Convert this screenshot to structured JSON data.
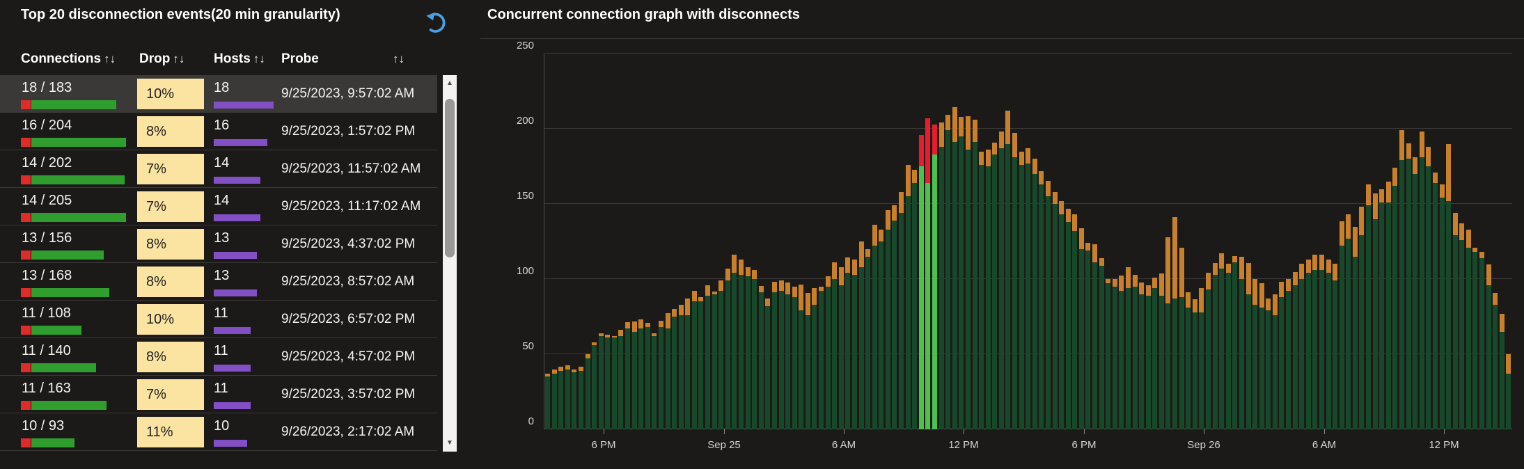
{
  "left_panel": {
    "title": "Top 20 disconnection events(20 min granularity)",
    "sort_glyph": "↑↓",
    "columns": [
      {
        "label": "Connections"
      },
      {
        "label": "Drop"
      },
      {
        "label": "Hosts"
      },
      {
        "label": "Probe"
      }
    ],
    "rows": [
      {
        "connections": "18 / 183",
        "total": 183,
        "drop": "10%",
        "hosts": "18",
        "hosts_n": 18,
        "probe": "9/25/2023, 9:57:02 AM",
        "selected": true
      },
      {
        "connections": "16 / 204",
        "total": 204,
        "drop": "8%",
        "hosts": "16",
        "hosts_n": 16,
        "probe": "9/25/2023, 1:57:02 PM",
        "selected": false
      },
      {
        "connections": "14 / 202",
        "total": 202,
        "drop": "7%",
        "hosts": "14",
        "hosts_n": 14,
        "probe": "9/25/2023, 11:57:02 AM",
        "selected": false
      },
      {
        "connections": "14 / 205",
        "total": 205,
        "drop": "7%",
        "hosts": "14",
        "hosts_n": 14,
        "probe": "9/25/2023, 11:17:02 AM",
        "selected": false
      },
      {
        "connections": "13 / 156",
        "total": 156,
        "drop": "8%",
        "hosts": "13",
        "hosts_n": 13,
        "probe": "9/25/2023, 4:37:02 PM",
        "selected": false
      },
      {
        "connections": "13 / 168",
        "total": 168,
        "drop": "8%",
        "hosts": "13",
        "hosts_n": 13,
        "probe": "9/25/2023, 8:57:02 AM",
        "selected": false
      },
      {
        "connections": "11 / 108",
        "total": 108,
        "drop": "10%",
        "hosts": "11",
        "hosts_n": 11,
        "probe": "9/25/2023, 6:57:02 PM",
        "selected": false
      },
      {
        "connections": "11 / 140",
        "total": 140,
        "drop": "8%",
        "hosts": "11",
        "hosts_n": 11,
        "probe": "9/25/2023, 4:57:02 PM",
        "selected": false
      },
      {
        "connections": "11 / 163",
        "total": 163,
        "drop": "7%",
        "hosts": "11",
        "hosts_n": 11,
        "probe": "9/25/2023, 3:57:02 PM",
        "selected": false
      },
      {
        "connections": "10 / 93",
        "total": 93,
        "drop": "11%",
        "hosts": "10",
        "hosts_n": 10,
        "probe": "9/26/2023, 2:17:02 AM",
        "selected": false
      }
    ]
  },
  "chart_data": {
    "type": "bar",
    "title": "Concurrent connection graph with disconnects",
    "granularity_minutes": 20,
    "ylim": [
      0,
      250
    ],
    "yticks": [
      0,
      50,
      100,
      150,
      200,
      250
    ],
    "grid": true,
    "xticks": [
      {
        "label": "6 PM",
        "barIndex": 8.4
      },
      {
        "label": "Sep 25",
        "barIndex": 26.4
      },
      {
        "label": "6 AM",
        "barIndex": 44.4
      },
      {
        "label": "12 PM",
        "barIndex": 62.3
      },
      {
        "label": "6 PM",
        "barIndex": 80.3
      },
      {
        "label": "Sep 26",
        "barIndex": 98.3
      },
      {
        "label": "6 AM",
        "barIndex": 116.3
      },
      {
        "label": "12 PM",
        "barIndex": 134.3
      }
    ],
    "series_note": "each bar = [stable_connections, total_connections]; top segment (total-stable) drawn orange, or red on highlighted disconnect bars",
    "highlighted_indices": [
      56,
      57,
      58
    ],
    "bars": [
      [
        35,
        37
      ],
      [
        37,
        40
      ],
      [
        39,
        42
      ],
      [
        40,
        43
      ],
      [
        38,
        40
      ],
      [
        39,
        42
      ],
      [
        47,
        50
      ],
      [
        56,
        58
      ],
      [
        62,
        64
      ],
      [
        61,
        63
      ],
      [
        61,
        62
      ],
      [
        62,
        66
      ],
      [
        67,
        71
      ],
      [
        65,
        72
      ],
      [
        67,
        73
      ],
      [
        68,
        71
      ],
      [
        62,
        64
      ],
      [
        68,
        72
      ],
      [
        67,
        77
      ],
      [
        75,
        80
      ],
      [
        76,
        83
      ],
      [
        76,
        87
      ],
      [
        85,
        92
      ],
      [
        85,
        88
      ],
      [
        89,
        96
      ],
      [
        90,
        92
      ],
      [
        92,
        99
      ],
      [
        99,
        107
      ],
      [
        104,
        116
      ],
      [
        103,
        113
      ],
      [
        102,
        108
      ],
      [
        100,
        106
      ],
      [
        91,
        95
      ],
      [
        82,
        87
      ],
      [
        91,
        98
      ],
      [
        92,
        99
      ],
      [
        90,
        98
      ],
      [
        88,
        95
      ],
      [
        79,
        96
      ],
      [
        76,
        91
      ],
      [
        83,
        94
      ],
      [
        92,
        95
      ],
      [
        95,
        102
      ],
      [
        100,
        111
      ],
      [
        96,
        108
      ],
      [
        104,
        114
      ],
      [
        103,
        113
      ],
      [
        108,
        125
      ],
      [
        115,
        120
      ],
      [
        122,
        136
      ],
      [
        125,
        133
      ],
      [
        133,
        146
      ],
      [
        139,
        149
      ],
      [
        144,
        158
      ],
      [
        155,
        176
      ],
      [
        164,
        173
      ],
      [
        175,
        196
      ],
      [
        164,
        207
      ],
      [
        183,
        203
      ],
      [
        188,
        204
      ],
      [
        199,
        209
      ],
      [
        191,
        214
      ],
      [
        195,
        208
      ],
      [
        186,
        208
      ],
      [
        191,
        206
      ],
      [
        176,
        185
      ],
      [
        175,
        186
      ],
      [
        183,
        191
      ],
      [
        187,
        198
      ],
      [
        190,
        212
      ],
      [
        181,
        197
      ],
      [
        176,
        185
      ],
      [
        177,
        187
      ],
      [
        170,
        180
      ],
      [
        163,
        172
      ],
      [
        155,
        165
      ],
      [
        150,
        158
      ],
      [
        143,
        152
      ],
      [
        138,
        147
      ],
      [
        132,
        143
      ],
      [
        120,
        134
      ],
      [
        119,
        124
      ],
      [
        111,
        123
      ],
      [
        109,
        114
      ],
      [
        97,
        100
      ],
      [
        95,
        100
      ],
      [
        92,
        102
      ],
      [
        94,
        108
      ],
      [
        95,
        103
      ],
      [
        90,
        98
      ],
      [
        89,
        96
      ],
      [
        94,
        101
      ],
      [
        89,
        104
      ],
      [
        84,
        128
      ],
      [
        87,
        141
      ],
      [
        88,
        121
      ],
      [
        81,
        91
      ],
      [
        78,
        87
      ],
      [
        78,
        94
      ],
      [
        93,
        104
      ],
      [
        103,
        111
      ],
      [
        107,
        117
      ],
      [
        104,
        110
      ],
      [
        111,
        115
      ],
      [
        100,
        115
      ],
      [
        90,
        111
      ],
      [
        83,
        100
      ],
      [
        81,
        97
      ],
      [
        79,
        87
      ],
      [
        76,
        90
      ],
      [
        88,
        98
      ],
      [
        92,
        100
      ],
      [
        96,
        105
      ],
      [
        100,
        110
      ],
      [
        104,
        113
      ],
      [
        106,
        116
      ],
      [
        106,
        116
      ],
      [
        104,
        113
      ],
      [
        99,
        110
      ],
      [
        122,
        138
      ],
      [
        127,
        143
      ],
      [
        115,
        135
      ],
      [
        129,
        148
      ],
      [
        149,
        163
      ],
      [
        140,
        157
      ],
      [
        151,
        160
      ],
      [
        151,
        165
      ],
      [
        162,
        174
      ],
      [
        179,
        199
      ],
      [
        180,
        190
      ],
      [
        170,
        181
      ],
      [
        181,
        198
      ],
      [
        175,
        188
      ],
      [
        164,
        171
      ],
      [
        154,
        163
      ],
      [
        152,
        190
      ],
      [
        129,
        144
      ],
      [
        126,
        137
      ],
      [
        121,
        133
      ],
      [
        118,
        121
      ],
      [
        114,
        118
      ],
      [
        96,
        110
      ],
      [
        83,
        91
      ],
      [
        65,
        77
      ],
      [
        37,
        50
      ]
    ]
  },
  "colors": {
    "background": "#1b1a19",
    "row_highlight": "#3a3938",
    "badge_bg": "#fbe3a2",
    "badge_text": "#201f1e",
    "table_green": "#2f9e2f",
    "table_red": "#e02b2b",
    "host_purple": "#8250c4",
    "chart_green": "#17482a",
    "chart_orange": "#c8802b",
    "highlight_green": "#4cc24c",
    "highlight_red": "#e81c2e",
    "refresh_blue": "#4ba0e1"
  }
}
